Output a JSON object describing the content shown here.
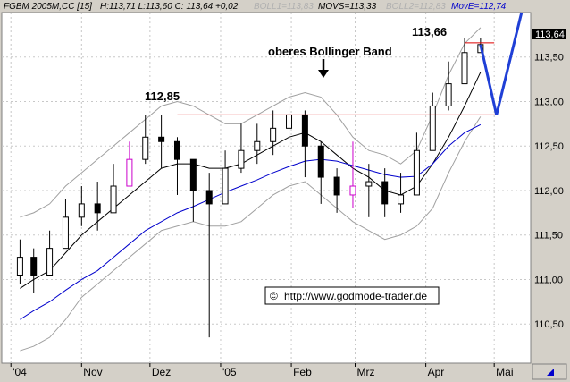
{
  "header": {
    "symbol": "FGBM 2005M,CC [15]",
    "hlc": "H:113,71 L:113,60 C: 113,64 +0,02",
    "boll1": "BOLL1=113,83",
    "movs": "MOVS=113,33",
    "boll2": "BOLL2=112,83",
    "move": "MovE=112,74"
  },
  "current_price_label": "113,64",
  "annotations": {
    "level_high": "112,85",
    "level_peak": "113,66",
    "upper_band": "oberes Bollinger Band",
    "watermark": "http://www.godmode-trader.de",
    "copyright": "©"
  },
  "colors": {
    "background": "#ffffff",
    "frame": "#d4d0c8",
    "candles": "#000000",
    "highlight_candles": "#cc00cc",
    "moving_average_short": "#000000",
    "moving_average_long": "#0000cc",
    "bollinger_bands": "#a0a0a0",
    "resistance_line": "#dd0000",
    "projection_arrow": "#1f3fd6"
  },
  "chart_data": {
    "type": "candlestick",
    "title": "",
    "y_ticks": [
      "113,50",
      "113,00",
      "112,50",
      "112,00",
      "111,50",
      "111,00",
      "110,50"
    ],
    "x_ticks": [
      "'04",
      "Nov",
      "Dez",
      "'05",
      "Feb",
      "Mrz",
      "Apr",
      "Mai"
    ],
    "ylim": [
      110.06,
      114.0
    ],
    "grid": true,
    "resistance_level": 112.85,
    "recent_high_level": 113.66,
    "current_price": 113.64,
    "series": [
      {
        "name": "candles",
        "x": [
          "2004-10-05",
          "2004-10-11",
          "2004-10-18",
          "2004-10-25",
          "2004-11-01",
          "2004-11-08",
          "2004-11-15",
          "2004-11-22",
          "2004-11-29",
          "2004-12-06",
          "2004-12-13",
          "2004-12-20",
          "2004-12-27",
          "2005-01-03",
          "2005-01-10",
          "2005-01-17",
          "2005-01-24",
          "2005-01-31",
          "2005-02-07",
          "2005-02-14",
          "2005-02-21",
          "2005-02-28",
          "2005-03-07",
          "2005-03-14",
          "2005-03-21",
          "2005-03-28",
          "2005-04-04",
          "2005-04-11",
          "2005-04-18",
          "2005-04-25"
        ],
        "close": [
          111.25,
          111.05,
          111.35,
          111.7,
          111.85,
          111.75,
          112.05,
          112.35,
          112.6,
          112.55,
          112.35,
          112.0,
          111.85,
          112.25,
          112.45,
          112.55,
          112.7,
          112.85,
          112.5,
          112.15,
          111.95,
          112.05,
          112.1,
          111.85,
          111.95,
          112.45,
          112.95,
          113.2,
          113.55,
          113.64
        ],
        "high": [
          111.45,
          111.35,
          111.55,
          111.9,
          112.05,
          112.1,
          112.3,
          112.55,
          112.85,
          112.85,
          112.6,
          112.3,
          112.2,
          112.45,
          112.75,
          112.75,
          112.9,
          112.95,
          112.9,
          112.55,
          112.25,
          112.55,
          112.3,
          112.25,
          112.2,
          112.65,
          113.1,
          113.45,
          113.71,
          113.71
        ],
        "low": [
          110.95,
          110.85,
          111.05,
          111.35,
          111.6,
          111.55,
          111.85,
          112.05,
          112.3,
          112.25,
          111.95,
          111.65,
          110.35,
          111.95,
          112.2,
          112.3,
          112.4,
          112.5,
          112.15,
          111.85,
          111.75,
          111.8,
          111.7,
          111.7,
          111.75,
          112.05,
          112.6,
          112.9,
          113.2,
          113.6
        ]
      },
      {
        "name": "MOVS",
        "y": [
          110.9,
          111.0,
          111.1,
          111.3,
          111.5,
          111.65,
          111.8,
          111.95,
          112.1,
          112.25,
          112.3,
          112.3,
          112.25,
          112.25,
          112.3,
          112.4,
          112.5,
          112.6,
          112.65,
          112.55,
          112.4,
          112.25,
          112.15,
          112.0,
          111.95,
          112.05,
          112.3,
          112.6,
          112.95,
          113.33
        ]
      },
      {
        "name": "MovE",
        "y": [
          110.55,
          110.65,
          110.75,
          110.88,
          111.0,
          111.1,
          111.25,
          111.4,
          111.55,
          111.65,
          111.75,
          111.82,
          111.9,
          111.98,
          112.05,
          112.12,
          112.2,
          112.27,
          112.33,
          112.35,
          112.33,
          112.28,
          112.23,
          112.18,
          112.15,
          112.16,
          112.3,
          112.5,
          112.65,
          112.74
        ]
      },
      {
        "name": "BOLL1",
        "y": [
          111.7,
          111.75,
          111.85,
          112.05,
          112.2,
          112.35,
          112.5,
          112.65,
          112.8,
          112.95,
          113.0,
          112.95,
          112.85,
          112.75,
          112.75,
          112.85,
          112.95,
          113.05,
          113.1,
          113.05,
          112.85,
          112.6,
          112.45,
          112.4,
          112.3,
          112.45,
          112.85,
          113.3,
          113.65,
          113.83
        ]
      },
      {
        "name": "BOLL2",
        "y": [
          110.2,
          110.25,
          110.35,
          110.55,
          110.8,
          110.95,
          111.1,
          111.25,
          111.4,
          111.55,
          111.6,
          111.65,
          111.6,
          111.6,
          111.65,
          111.8,
          111.95,
          112.05,
          112.1,
          111.95,
          111.8,
          111.65,
          111.55,
          111.45,
          111.5,
          111.6,
          111.8,
          112.2,
          112.55,
          112.83
        ]
      }
    ],
    "projection": {
      "name": "projected path",
      "x": [
        "2005-04-25",
        "2005-05-02",
        "2005-05-13"
      ],
      "y": [
        113.64,
        112.85,
        114.0
      ]
    }
  }
}
